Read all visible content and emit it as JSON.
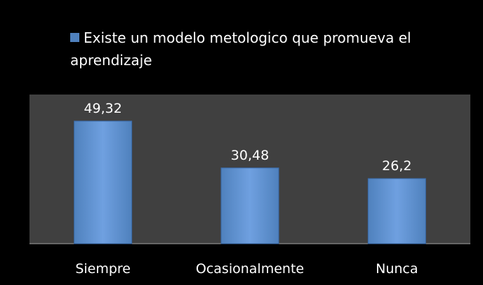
{
  "chart_data": {
    "type": "bar",
    "categories": [
      "Siempre",
      "Ocasionalmente",
      "Nunca"
    ],
    "series": [
      {
        "name": "Existe un modelo metologico que promueva el aprendizaje",
        "color": "#4f81bd",
        "values": [
          49.32,
          30.48,
          26.2
        ],
        "value_labels": [
          "49,32",
          "30,48",
          "26,2"
        ]
      }
    ],
    "ylim": [
      0,
      60
    ],
    "legend": "top"
  }
}
